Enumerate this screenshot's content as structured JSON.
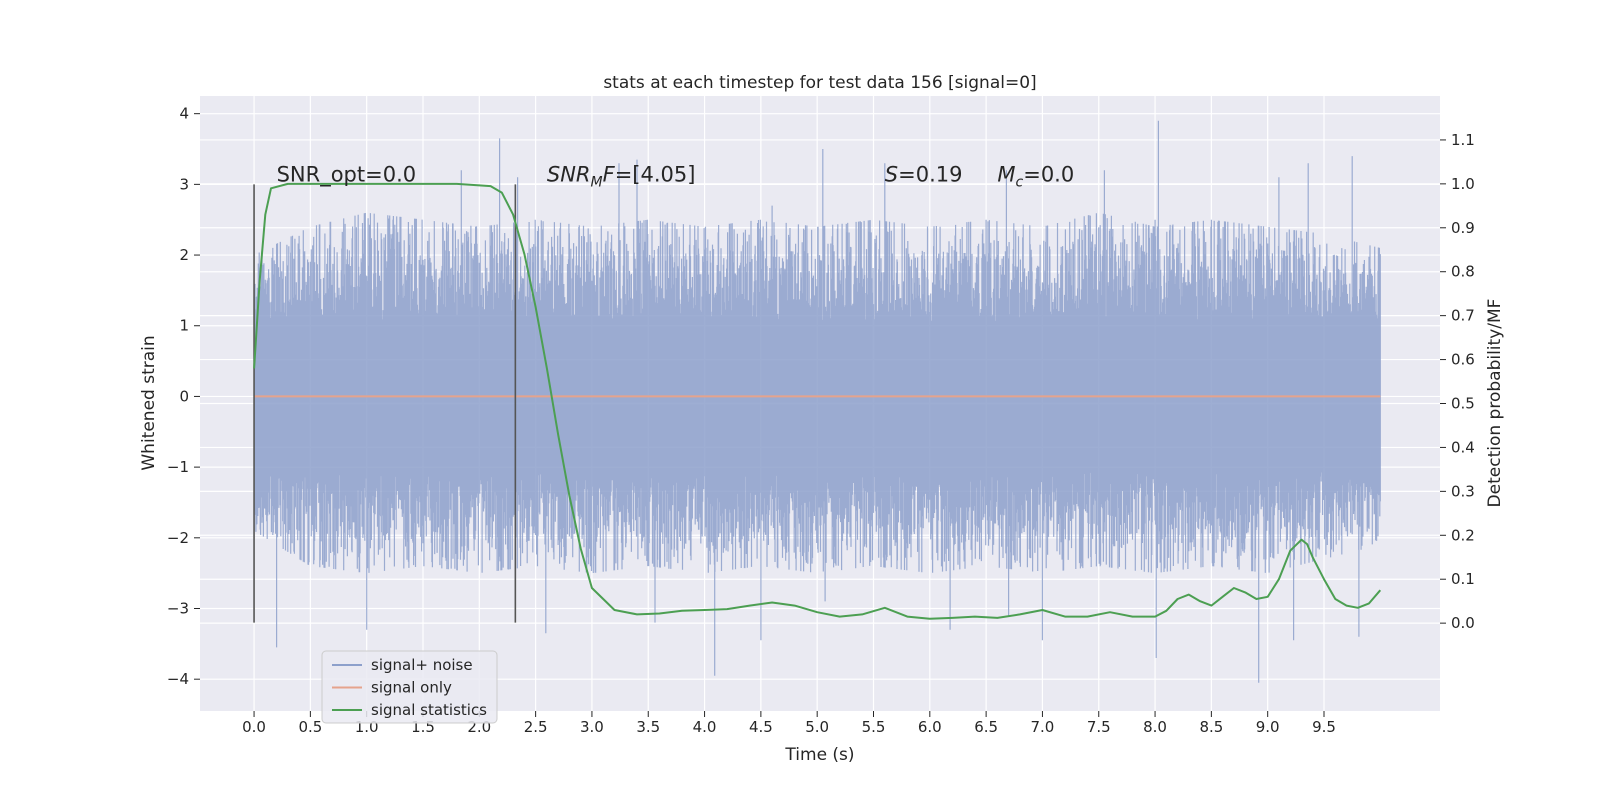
{
  "chart_data": {
    "type": "line",
    "title": "stats at each timestep for test data 156 [signal=0]",
    "xlabel": "Time (s)",
    "ylabel": "Whitened strain",
    "y2label": "Detection probability/MF",
    "xlim": [
      -0.48,
      10.53
    ],
    "ylim": [
      -4.45,
      4.25
    ],
    "y2lim": [
      -0.2,
      1.2
    ],
    "x_ticks": [
      0.0,
      0.5,
      1.0,
      1.5,
      2.0,
      2.5,
      3.0,
      3.5,
      4.0,
      4.5,
      5.0,
      5.5,
      6.0,
      6.5,
      7.0,
      7.5,
      8.0,
      8.5,
      9.0,
      9.5
    ],
    "x_tick_labels": [
      "0.0",
      "0.5",
      "1.0",
      "1.5",
      "2.0",
      "2.5",
      "3.0",
      "3.5",
      "4.0",
      "4.5",
      "5.0",
      "5.5",
      "6.0",
      "6.5",
      "7.0",
      "7.5",
      "8.0",
      "8.5",
      "9.0",
      "9.5"
    ],
    "y_ticks": [
      4,
      3,
      2,
      1,
      0,
      -1,
      -2,
      -3,
      -4
    ],
    "y_tick_labels": [
      "4",
      "3",
      "2",
      "1",
      "0",
      "−1",
      "−2",
      "−3",
      "−4"
    ],
    "y2_ticks": [
      1.1,
      1.0,
      0.9,
      0.8,
      0.7,
      0.6,
      0.5,
      0.4,
      0.3,
      0.2,
      0.1,
      0.0
    ],
    "y2_tick_labels": [
      "1.1",
      "1.0",
      "0.9",
      "0.8",
      "0.7",
      "0.6",
      "0.5",
      "0.4",
      "0.3",
      "0.2",
      "0.1",
      "0.0"
    ],
    "grid": true,
    "legend_position": "lower-left",
    "series": [
      {
        "name": "signal+ noise",
        "color": "#8da0cb",
        "axis": "left",
        "x_range": [
          0.0,
          10.0
        ],
        "envelope_upper": [
          2.0,
          2.4,
          2.6,
          2.5,
          2.4,
          2.5,
          2.4,
          2.5,
          2.4,
          2.5,
          2.4,
          2.5,
          2.4,
          2.5,
          2.4,
          2.6,
          2.4,
          2.5,
          2.4,
          2.3,
          2.1
        ],
        "envelope_lower": [
          -1.9,
          -2.4,
          -2.5,
          -2.4,
          -2.5,
          -2.4,
          -2.5,
          -2.4,
          -2.5,
          -2.4,
          -2.5,
          -2.4,
          -2.5,
          -2.4,
          -2.5,
          -2.4,
          -2.5,
          -2.4,
          -2.5,
          -2.3,
          -2.1
        ],
        "peaks": [
          [
            1.23,
            2.3
          ],
          [
            1.84,
            3.2
          ],
          [
            2.18,
            3.65
          ],
          [
            2.34,
            3.1
          ],
          [
            3.24,
            3.3
          ],
          [
            3.4,
            3.35
          ],
          [
            4.6,
            2.7
          ],
          [
            5.05,
            3.5
          ],
          [
            5.6,
            3.3
          ],
          [
            6.68,
            3.2
          ],
          [
            7.55,
            3.2
          ],
          [
            8.0,
            2.5
          ],
          [
            8.03,
            3.9
          ],
          [
            9.1,
            3.1
          ],
          [
            9.36,
            3.3
          ],
          [
            9.75,
            3.4
          ],
          [
            0.2,
            -3.55
          ],
          [
            1.0,
            -3.3
          ],
          [
            2.59,
            -3.35
          ],
          [
            3.56,
            -3.2
          ],
          [
            4.09,
            -3.95
          ],
          [
            4.5,
            -3.45
          ],
          [
            5.07,
            -2.9
          ],
          [
            6.18,
            -3.3
          ],
          [
            6.7,
            -3.1
          ],
          [
            7.0,
            -3.45
          ],
          [
            8.01,
            -3.7
          ],
          [
            8.92,
            -4.05
          ],
          [
            9.23,
            -3.45
          ],
          [
            9.81,
            -3.4
          ]
        ]
      },
      {
        "name": "signal only",
        "color": "#e5a38c",
        "axis": "left",
        "x": [
          0.0,
          10.0
        ],
        "y": [
          0.0,
          0.0
        ]
      },
      {
        "name": "signal statistics",
        "color": "#4c9f52",
        "axis": "right",
        "x": [
          0.0,
          0.05,
          0.1,
          0.15,
          0.3,
          1.0,
          1.8,
          2.1,
          2.2,
          2.3,
          2.4,
          2.5,
          2.6,
          2.7,
          2.8,
          2.9,
          3.0,
          3.2,
          3.4,
          3.6,
          3.8,
          4.0,
          4.2,
          4.4,
          4.6,
          4.8,
          5.0,
          5.2,
          5.4,
          5.6,
          5.8,
          6.0,
          6.2,
          6.4,
          6.6,
          6.8,
          7.0,
          7.2,
          7.4,
          7.6,
          7.8,
          8.0,
          8.1,
          8.2,
          8.3,
          8.4,
          8.5,
          8.6,
          8.7,
          8.8,
          8.9,
          9.0,
          9.1,
          9.2,
          9.3,
          9.35,
          9.4,
          9.5,
          9.6,
          9.7,
          9.8,
          9.9,
          10.0
        ],
        "y": [
          0.58,
          0.78,
          0.93,
          0.99,
          1.0,
          1.0,
          1.0,
          0.995,
          0.98,
          0.93,
          0.84,
          0.72,
          0.58,
          0.43,
          0.29,
          0.17,
          0.08,
          0.03,
          0.02,
          0.022,
          0.028,
          0.03,
          0.032,
          0.04,
          0.047,
          0.04,
          0.025,
          0.015,
          0.02,
          0.035,
          0.015,
          0.01,
          0.012,
          0.015,
          0.012,
          0.02,
          0.03,
          0.015,
          0.015,
          0.025,
          0.015,
          0.015,
          0.028,
          0.055,
          0.065,
          0.05,
          0.04,
          0.06,
          0.08,
          0.07,
          0.055,
          0.06,
          0.1,
          0.165,
          0.19,
          0.18,
          0.15,
          0.1,
          0.055,
          0.04,
          0.035,
          0.045,
          0.075
        ]
      }
    ],
    "vertical_lines": [
      {
        "x": 0.0,
        "y_range": [
          -3.2,
          3.0
        ],
        "color": "#555555"
      },
      {
        "x": 2.32,
        "y_range": [
          -3.2,
          3.0
        ],
        "color": "#555555"
      }
    ],
    "annotations": [
      {
        "id": "snr_opt",
        "x": 0.2,
        "y": 3.0,
        "text": "SNR_opt=0.0"
      },
      {
        "id": "snr_mf",
        "x": 2.6,
        "y": 3.0,
        "text_main": "SNR",
        "text_sub": "M",
        "text_rest": "F=[4.05]"
      },
      {
        "id": "s_value",
        "x": 5.6,
        "y": 3.0,
        "text_var": "S",
        "text_rest": "=0.19"
      },
      {
        "id": "mc_value",
        "x": 6.6,
        "y": 3.0,
        "text_var": "M",
        "text_sub": "c",
        "text_rest": "=0.0"
      }
    ],
    "legend": [
      "signal+ noise",
      "signal only",
      "signal statistics"
    ]
  },
  "colors": {
    "plot_background": "#eaeaf2",
    "grid": "#ffffff",
    "text": "#262626"
  }
}
